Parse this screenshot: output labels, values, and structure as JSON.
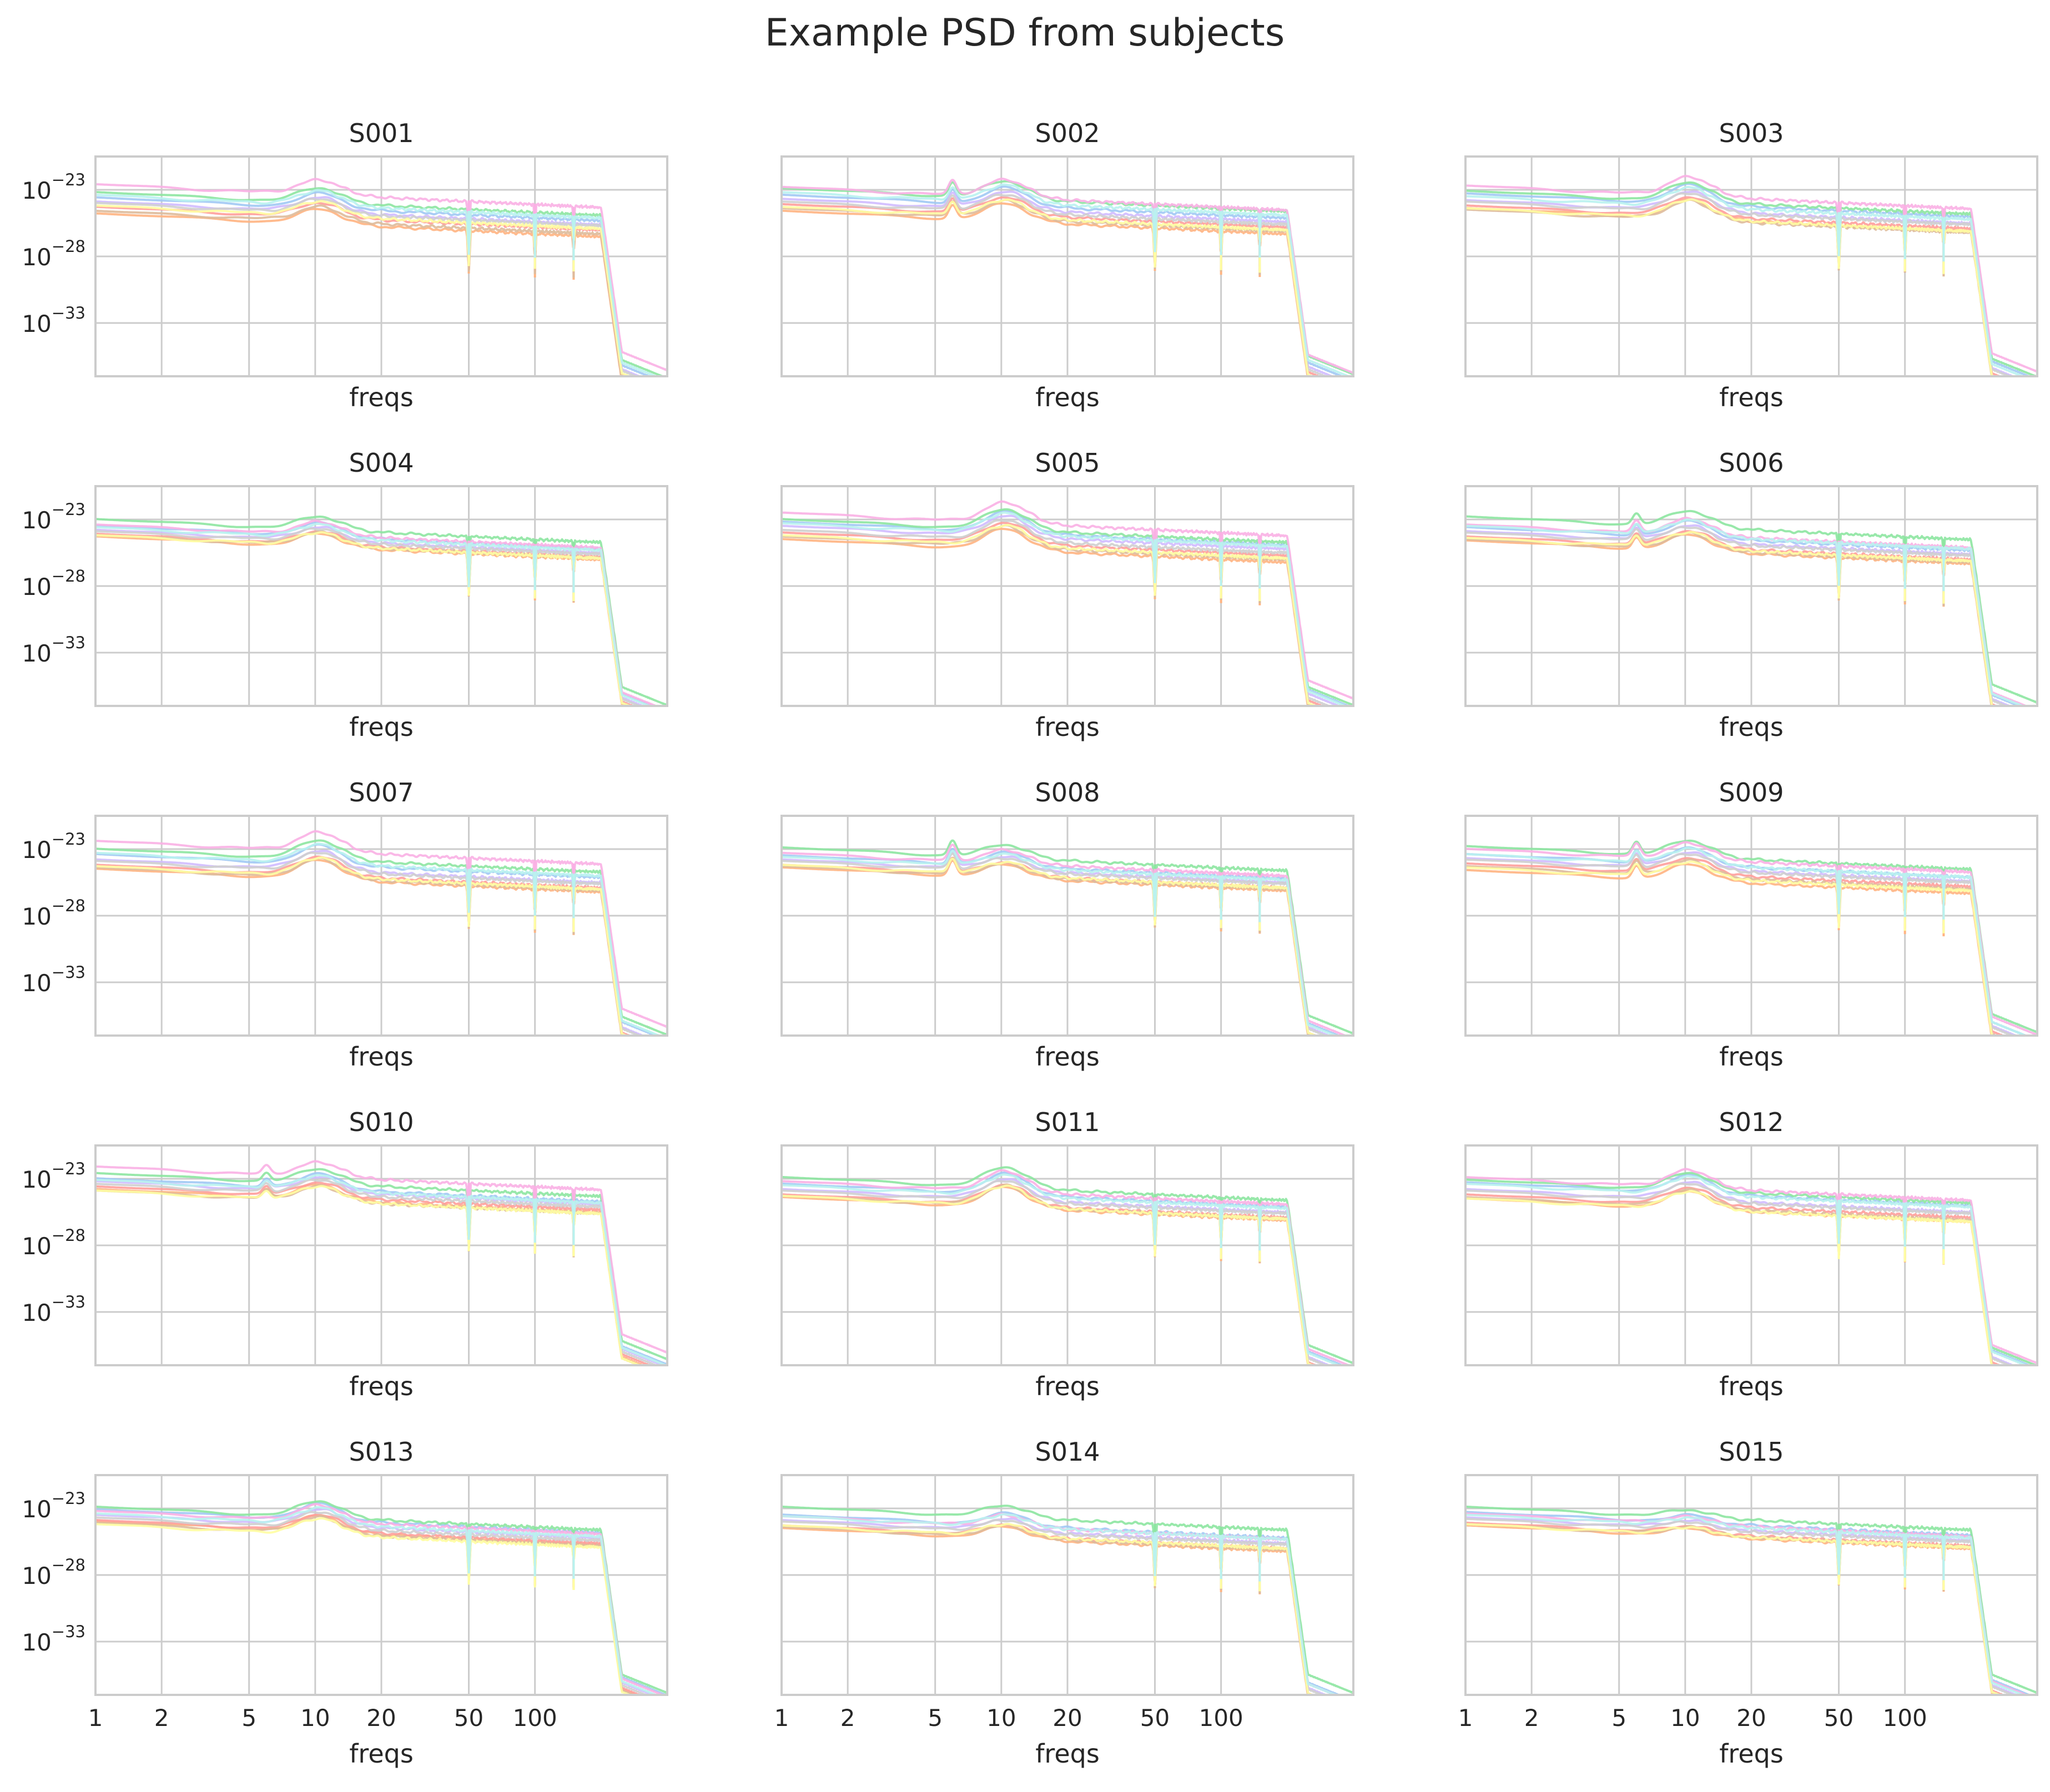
{
  "chart_data": {
    "type": "line",
    "title": "Example PSD from subjects",
    "xscale": "log",
    "yscale": "log",
    "xlabel": "freqs",
    "xlim": [
      1,
      400
    ],
    "ylim_exponent": [
      -37,
      -20.5
    ],
    "xticks": [
      1,
      2,
      5,
      10,
      20,
      50,
      100
    ],
    "xtick_labels": [
      "1",
      "2",
      "5",
      "10",
      "20",
      "50",
      "100"
    ],
    "yticks_exponent": [
      -23,
      -28,
      -33
    ],
    "ytick_labels": [
      {
        "base": "10",
        "exp": "−23"
      },
      {
        "base": "10",
        "exp": "−28"
      },
      {
        "base": "10",
        "exp": "−33"
      }
    ],
    "grid": true,
    "sharex": true,
    "sharey": true,
    "notch_frequencies": [
      50,
      100,
      150
    ],
    "lowpass_cutoff_hz": 200,
    "channel_colors": [
      "#a1c9f4",
      "#ffb482",
      "#8de5a1",
      "#ff9f9b",
      "#d0bbff",
      "#debb9b",
      "#fab0e4",
      "#cfcfcf",
      "#fffea3",
      "#b9f2f0"
    ],
    "subjects": [
      {
        "name": "S001",
        "alpha_peak": 1.0,
        "theta_peak": 0.0,
        "offsets": [
          -23.6,
          -24.8,
          -23.2,
          -24.3,
          -23.9,
          -24.6,
          -22.6,
          -24.0,
          -24.2,
          -23.4
        ]
      },
      {
        "name": "S002",
        "alpha_peak": 1.2,
        "theta_peak": 1.0,
        "offsets": [
          -23.4,
          -24.6,
          -22.9,
          -24.1,
          -23.7,
          -24.4,
          -22.8,
          -23.9,
          -24.3,
          -23.2
        ]
      },
      {
        "name": "S003",
        "alpha_peak": 1.3,
        "theta_peak": 0.0,
        "offsets": [
          -23.3,
          -24.4,
          -23.1,
          -24.2,
          -23.8,
          -24.5,
          -22.7,
          -23.9,
          -24.4,
          -23.5
        ]
      },
      {
        "name": "S004",
        "alpha_peak": 0.9,
        "theta_peak": 0.0,
        "offsets": [
          -23.5,
          -24.3,
          -23.0,
          -24.1,
          -23.8,
          -24.2,
          -23.4,
          -23.9,
          -24.2,
          -23.6
        ]
      },
      {
        "name": "S005",
        "alpha_peak": 1.4,
        "theta_peak": 0.0,
        "offsets": [
          -23.2,
          -24.5,
          -23.0,
          -24.0,
          -23.5,
          -24.3,
          -22.5,
          -23.8,
          -24.2,
          -23.3
        ]
      },
      {
        "name": "S006",
        "alpha_peak": 1.1,
        "theta_peak": 0.8,
        "offsets": [
          -23.6,
          -24.6,
          -22.8,
          -24.3,
          -23.9,
          -24.5,
          -23.4,
          -24.0,
          -24.4,
          -23.5
        ]
      },
      {
        "name": "S007",
        "alpha_peak": 1.3,
        "theta_peak": 0.0,
        "offsets": [
          -23.4,
          -24.5,
          -23.0,
          -24.2,
          -23.8,
          -24.4,
          -22.4,
          -23.9,
          -24.3,
          -23.3
        ]
      },
      {
        "name": "S008",
        "alpha_peak": 0.9,
        "theta_peak": 1.1,
        "offsets": [
          -23.5,
          -24.4,
          -22.9,
          -24.2,
          -23.8,
          -24.3,
          -23.3,
          -23.9,
          -24.2,
          -23.6
        ]
      },
      {
        "name": "S009",
        "alpha_peak": 1.1,
        "theta_peak": 0.9,
        "offsets": [
          -23.4,
          -24.6,
          -22.8,
          -24.1,
          -23.7,
          -24.3,
          -23.0,
          -23.8,
          -24.4,
          -23.4
        ]
      },
      {
        "name": "S010",
        "alpha_peak": 1.0,
        "theta_peak": 0.6,
        "offsets": [
          -23.0,
          -23.8,
          -22.6,
          -23.6,
          -23.2,
          -23.9,
          -22.1,
          -23.4,
          -23.9,
          -23.1
        ]
      },
      {
        "name": "S011",
        "alpha_peak": 1.4,
        "theta_peak": 0.0,
        "offsets": [
          -23.4,
          -24.4,
          -22.9,
          -24.2,
          -23.8,
          -24.3,
          -23.2,
          -23.9,
          -24.3,
          -23.5
        ]
      },
      {
        "name": "S012",
        "alpha_peak": 1.2,
        "theta_peak": 0.0,
        "offsets": [
          -23.3,
          -24.5,
          -23.1,
          -24.2,
          -23.8,
          -24.4,
          -22.9,
          -23.9,
          -24.5,
          -23.4
        ]
      },
      {
        "name": "S013",
        "alpha_peak": 1.1,
        "theta_peak": 0.0,
        "offsets": [
          -23.1,
          -24.0,
          -22.9,
          -23.9,
          -23.5,
          -24.1,
          -23.2,
          -23.7,
          -24.2,
          -23.4
        ]
      },
      {
        "name": "S014",
        "alpha_peak": 0.8,
        "theta_peak": 0.0,
        "offsets": [
          -23.5,
          -24.5,
          -22.9,
          -24.3,
          -23.9,
          -24.4,
          -23.6,
          -24.0,
          -24.3,
          -23.6
        ]
      },
      {
        "name": "S015",
        "alpha_peak": 0.5,
        "theta_peak": 0.0,
        "offsets": [
          -23.3,
          -24.3,
          -22.9,
          -24.1,
          -23.7,
          -24.2,
          -23.4,
          -23.8,
          -24.2,
          -23.5
        ]
      }
    ]
  }
}
